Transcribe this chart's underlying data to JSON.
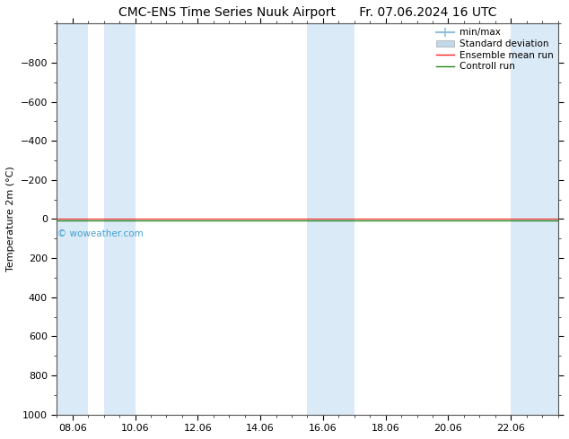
{
  "title_left": "CMC-ENS Time Series Nuuk Airport",
  "title_right": "Fr. 07.06.2024 16 UTC",
  "ylabel": "Temperature 2m (°C)",
  "ylim_bottom": 1000,
  "ylim_top": -1000,
  "yticks": [
    -800,
    -600,
    -400,
    -200,
    0,
    200,
    400,
    600,
    800,
    1000
  ],
  "xtick_labels": [
    "08.06",
    "10.06",
    "12.06",
    "14.06",
    "16.06",
    "18.06",
    "20.06",
    "22.06"
  ],
  "xtick_positions": [
    0.5,
    2.5,
    4.5,
    6.5,
    8.5,
    10.5,
    12.5,
    14.5
  ],
  "xlim": [
    0,
    16
  ],
  "shaded_columns": [
    [
      0,
      1.0
    ],
    [
      1.5,
      2.5
    ],
    [
      8.0,
      9.5
    ],
    [
      14.5,
      16
    ]
  ],
  "line_y": 0,
  "watermark": "© woweather.com",
  "bg_color": "#ffffff",
  "shade_color": "#daeaf7",
  "legend_items": [
    "min/max",
    "Standard deviation",
    "Ensemble mean run",
    "Controll run"
  ],
  "minmax_color": "#90c0e0",
  "stddev_color": "#c0d8e8",
  "ensemble_color": "#ff2222",
  "control_color": "#228822",
  "title_fontsize": 10,
  "axis_fontsize": 8,
  "tick_fontsize": 8,
  "legend_fontsize": 7.5
}
